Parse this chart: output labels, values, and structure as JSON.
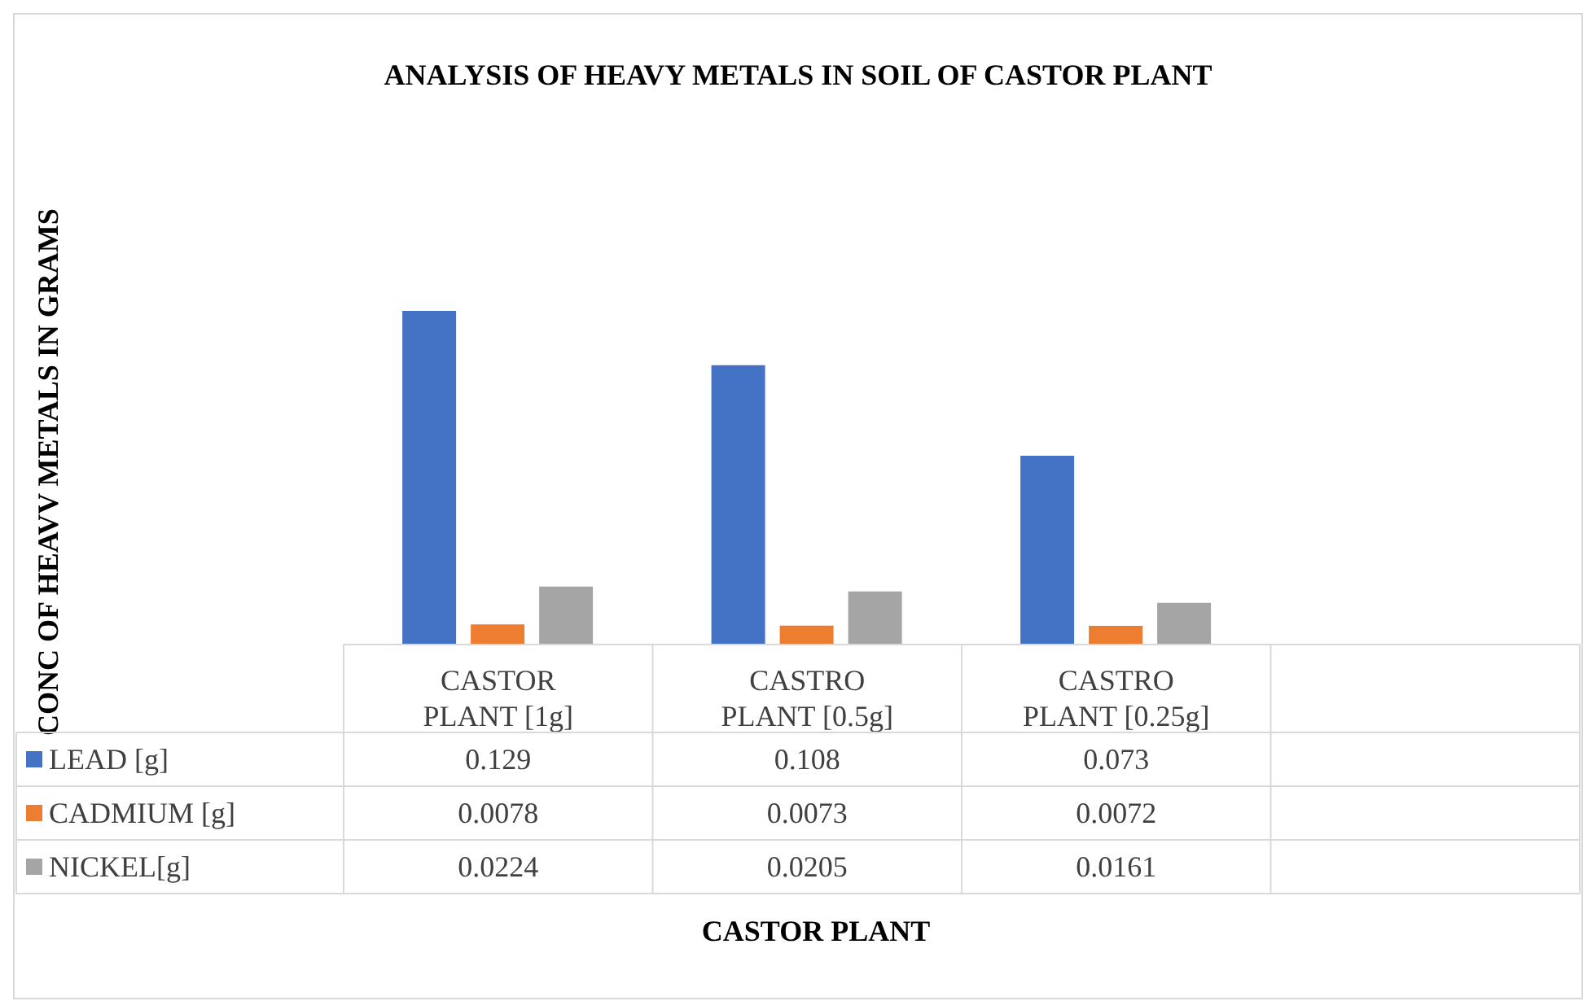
{
  "chart_data": {
    "type": "bar",
    "title": "ANALYSIS OF HEAVY METALS IN SOIL OF CASTOR PLANT",
    "annotations": [
      "CASTOR PLANT",
      "CONC OF HEAVV METALS IN GRAMS"
    ],
    "categories": [
      "CASTOR PLANT [1g]",
      "CASTRO PLANT [0.5g]",
      "CASTRO PLANT [0.25g]",
      null
    ],
    "series": [
      {
        "name": "LEAD [g]",
        "color": "#4472c4",
        "values": [
          0.129,
          0.108,
          0.073,
          null
        ]
      },
      {
        "name": "CADMIUM [g]",
        "color": "#ed7d31",
        "values": [
          0.0078,
          0.0073,
          0.0072,
          null
        ]
      },
      {
        "name": "NICKEL[g]",
        "color": "#a5a5a5",
        "values": [
          0.0224,
          0.0205,
          0.0161,
          null
        ]
      }
    ],
    "data_labels": true,
    "legend": "bottom",
    "grid": false
  }
}
